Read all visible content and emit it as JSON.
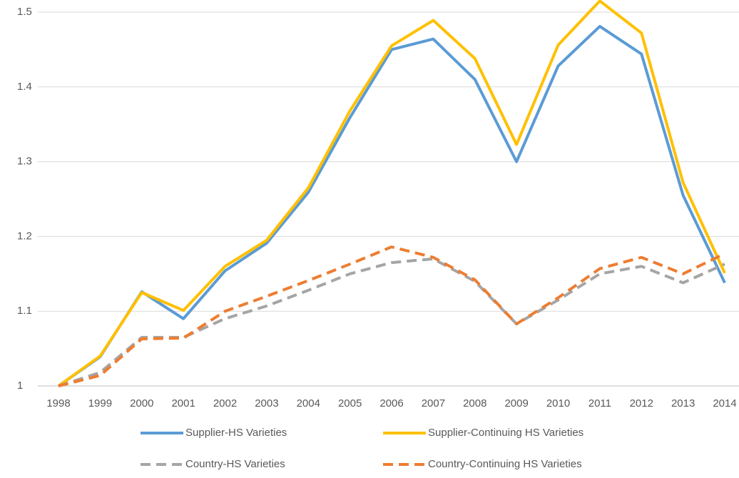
{
  "chart_data": {
    "type": "line",
    "categories": [
      "1998",
      "1999",
      "2000",
      "2001",
      "2002",
      "2003",
      "2004",
      "2005",
      "2006",
      "2007",
      "2008",
      "2009",
      "2010",
      "2011",
      "2012",
      "2013",
      "2014"
    ],
    "series": [
      {
        "name": "Supplier-HS Varieties",
        "color": "#5b9bd5",
        "dashed": false,
        "values": [
          1.0,
          1.039,
          1.126,
          1.09,
          1.154,
          1.191,
          1.259,
          1.359,
          1.45,
          1.464,
          1.41,
          1.3,
          1.428,
          1.481,
          1.444,
          1.255,
          1.138
        ]
      },
      {
        "name": "Supplier-Continuing HS Varieties",
        "color": "#ffc000",
        "dashed": false,
        "values": [
          1.0,
          1.04,
          1.125,
          1.101,
          1.16,
          1.195,
          1.265,
          1.368,
          1.455,
          1.489,
          1.438,
          1.323,
          1.456,
          1.515,
          1.472,
          1.272,
          1.151
        ]
      },
      {
        "name": "Country-HS Varieties",
        "color": "#a5a5a5",
        "dashed": true,
        "values": [
          1.0,
          1.018,
          1.065,
          1.065,
          1.09,
          1.107,
          1.128,
          1.15,
          1.165,
          1.17,
          1.14,
          1.083,
          1.115,
          1.15,
          1.16,
          1.138,
          1.163
        ]
      },
      {
        "name": "Country-Continuing HS Varieties",
        "color": "#ed7d31",
        "dashed": true,
        "values": [
          1.0,
          1.014,
          1.063,
          1.064,
          1.1,
          1.12,
          1.141,
          1.163,
          1.186,
          1.172,
          1.142,
          1.083,
          1.118,
          1.157,
          1.172,
          1.15,
          1.177
        ]
      }
    ],
    "ylim": [
      1,
      1.5
    ],
    "yticks": [
      1,
      1.1,
      1.2,
      1.3,
      1.4,
      1.5
    ],
    "grid": true
  }
}
